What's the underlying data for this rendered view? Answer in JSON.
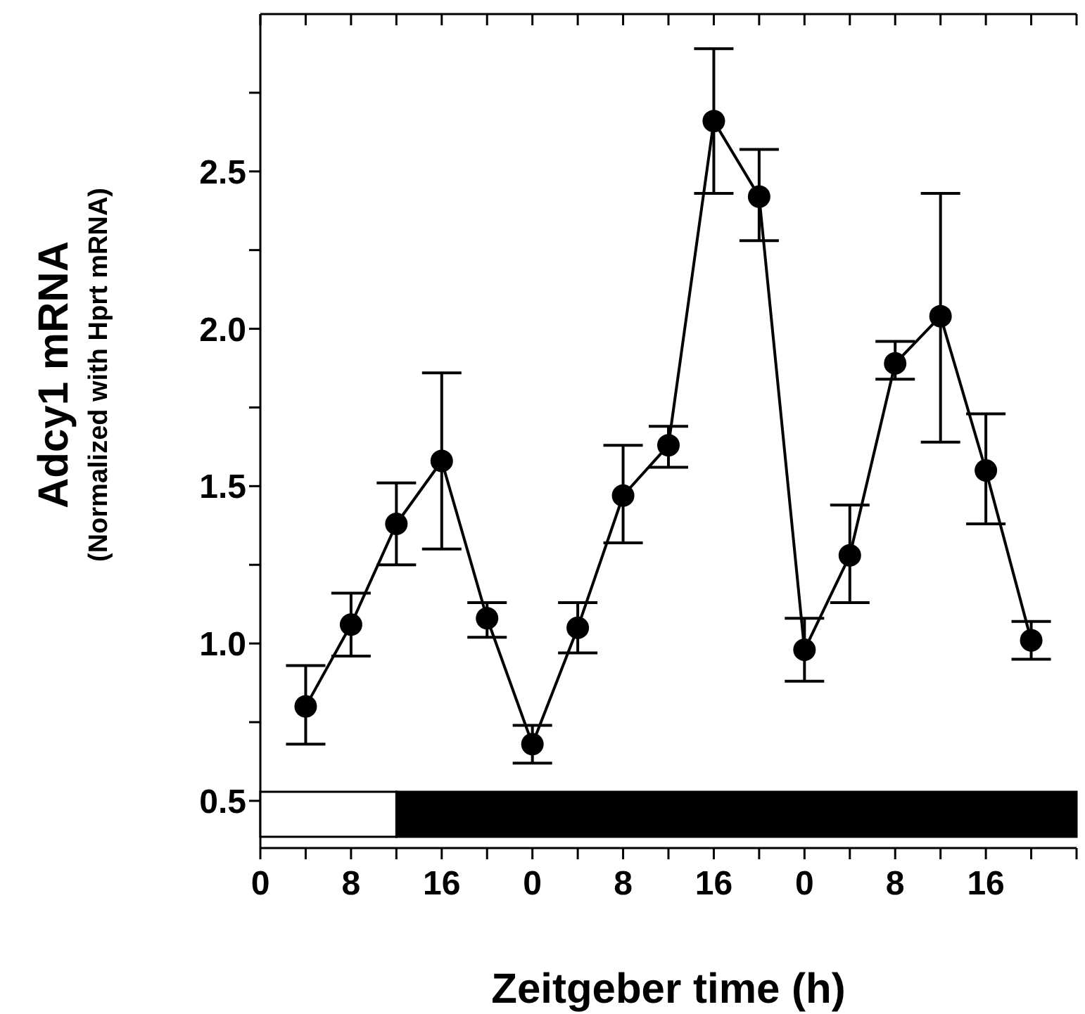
{
  "chart_data": {
    "type": "line",
    "xlabel": "Zeitgeber time (h)",
    "ylabel": "Adcy1 mRNA\n(Normalized with Hprt mRNA)",
    "categories": [
      "0",
      null,
      "8",
      null,
      "16",
      null,
      "0",
      null,
      "8",
      null,
      "16",
      null,
      "0",
      null,
      "8",
      null,
      "16",
      null,
      null
    ],
    "series": [
      {
        "color": "#000000",
        "values": [
          null,
          0.8,
          1.06,
          1.38,
          1.58,
          1.08,
          0.68,
          1.05,
          1.47,
          1.63,
          2.66,
          2.42,
          0.98,
          1.28,
          1.89,
          2.04,
          1.55,
          1.01,
          null
        ],
        "errors": [
          null,
          [
            0.68,
            0.93
          ],
          [
            0.96,
            1.16
          ],
          [
            1.25,
            1.51
          ],
          [
            1.3,
            1.86
          ],
          [
            1.02,
            1.13
          ],
          [
            0.62,
            0.74
          ],
          [
            0.97,
            1.13
          ],
          [
            1.32,
            1.63
          ],
          [
            1.56,
            1.69
          ],
          [
            2.43,
            2.89
          ],
          [
            2.28,
            2.57
          ],
          [
            0.88,
            1.08
          ],
          [
            1.13,
            1.44
          ],
          [
            1.84,
            1.96
          ],
          [
            1.64,
            2.43
          ],
          [
            1.38,
            1.73
          ],
          [
            0.95,
            1.07
          ],
          null
        ]
      }
    ],
    "marker": "circle",
    "line_style": "solid",
    "ylim": [
      0.35,
      3.0
    ],
    "yticks": [
      0.5,
      {
        "value": 0.75,
        "label": null
      },
      {
        "value": 1,
        "label": "1.0"
      },
      {
        "value": 1.25,
        "label": null
      },
      1.5,
      {
        "value": 1.75,
        "label": null
      },
      {
        "value": 2,
        "label": "2.0"
      },
      {
        "value": 2.25,
        "label": null
      },
      2.5,
      {
        "value": 2.75,
        "label": null
      }
    ]
  }
}
